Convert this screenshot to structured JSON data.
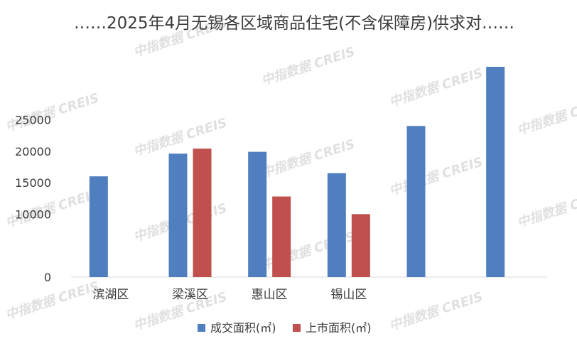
{
  "chart_data": {
    "type": "bar",
    "title": "……2025年4月无锡各区域商品住宅(不含保障房)供求对……",
    "categories": [
      "滨湖区",
      "梁溪区",
      "惠山区",
      "锡山区",
      "",
      ""
    ],
    "series": [
      {
        "name": "成交面积(㎡)",
        "color": "#4f7fbf",
        "values": [
          16000,
          19600,
          19900,
          16500,
          24000,
          33400
        ]
      },
      {
        "name": "上市面积(㎡)",
        "color": "#c0504d",
        "values": [
          null,
          20400,
          12800,
          10000,
          null,
          null
        ]
      }
    ],
    "y_ticks": [
      0,
      10000,
      15000,
      20000,
      25000
    ],
    "ylim": [
      0,
      33400
    ],
    "grid": false,
    "legend_position": "bottom"
  },
  "watermark": "中指数据 CREIS",
  "colors": {
    "text": "#3a3a3a",
    "watermark": "#c8c8c8"
  }
}
